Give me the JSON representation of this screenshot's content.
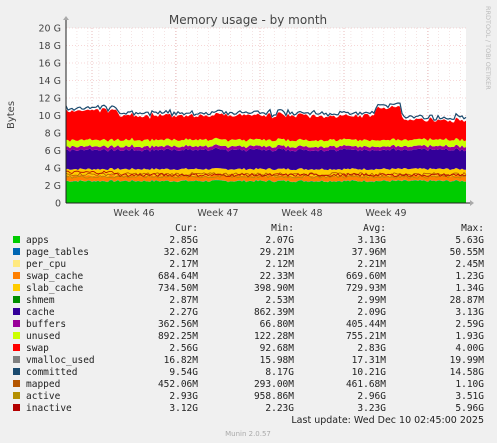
{
  "chart_data": {
    "type": "area",
    "title": "Memory usage - by month",
    "ylabel": "Bytes",
    "ylim": [
      0,
      20
    ],
    "y_unit": "G",
    "yticks": [
      "0",
      "2 G",
      "4 G",
      "6 G",
      "8 G",
      "10 G",
      "12 G",
      "14 G",
      "16 G",
      "18 G",
      "20 G"
    ],
    "xticks": [
      "Week 46",
      "Week 47",
      "Week 48",
      "Week 49"
    ],
    "grid": true,
    "side_label": "RRDTOOL / TOBI OETIKER",
    "stack_approx_G": [
      {
        "name": "apps",
        "value": 2.5
      },
      {
        "name": "page_tables",
        "value": 0.03
      },
      {
        "name": "per_cpu",
        "value": 0.002
      },
      {
        "name": "swap_cache",
        "value": 0.6
      },
      {
        "name": "slab_cache",
        "value": 0.75
      },
      {
        "name": "shmem",
        "value": 0.003
      },
      {
        "name": "cache",
        "value": 2.2
      },
      {
        "name": "buffers",
        "value": 0.4
      },
      {
        "name": "unused",
        "value": 0.75
      },
      {
        "name": "swap",
        "value": 2.8
      }
    ],
    "lines_approx_G": [
      {
        "name": "committed",
        "value": 10.2
      },
      {
        "name": "mapped",
        "value": 3.3
      },
      {
        "name": "active",
        "value": 3.0
      },
      {
        "name": "inactive",
        "value": 3.2
      }
    ],
    "legend_headers": {
      "cur": "Cur:",
      "min": "Min:",
      "avg": "Avg:",
      "max": "Max:"
    },
    "series": [
      {
        "name": "apps",
        "color": "#00cc00",
        "cur": "2.85G",
        "min": "2.07G",
        "avg": "3.13G",
        "max": "5.63G"
      },
      {
        "name": "page_tables",
        "color": "#0066b3",
        "cur": "32.62M",
        "min": "29.21M",
        "avg": "37.96M",
        "max": "50.55M"
      },
      {
        "name": "per_cpu",
        "color": "#ffe97f",
        "cur": "2.17M",
        "min": "2.12M",
        "avg": "2.21M",
        "max": "2.45M"
      },
      {
        "name": "swap_cache",
        "color": "#ff8000",
        "cur": "684.64M",
        "min": "22.33M",
        "avg": "669.60M",
        "max": "1.23G"
      },
      {
        "name": "slab_cache",
        "color": "#ffcc00",
        "cur": "734.50M",
        "min": "398.90M",
        "avg": "729.93M",
        "max": "1.34G"
      },
      {
        "name": "shmem",
        "color": "#008f00",
        "cur": "2.87M",
        "min": "2.53M",
        "avg": "2.99M",
        "max": "28.87M"
      },
      {
        "name": "cache",
        "color": "#330099",
        "cur": "2.27G",
        "min": "862.39M",
        "avg": "2.09G",
        "max": "3.13G"
      },
      {
        "name": "buffers",
        "color": "#990099",
        "cur": "362.56M",
        "min": "66.80M",
        "avg": "405.44M",
        "max": "2.59G"
      },
      {
        "name": "unused",
        "color": "#ccff00",
        "cur": "892.25M",
        "min": "122.28M",
        "avg": "755.21M",
        "max": "1.93G"
      },
      {
        "name": "swap",
        "color": "#ff0000",
        "cur": "2.56G",
        "min": "92.68M",
        "avg": "2.83G",
        "max": "4.00G"
      },
      {
        "name": "vmalloc_used",
        "color": "#808080",
        "cur": "16.82M",
        "min": "15.98M",
        "avg": "17.31M",
        "max": "19.99M"
      },
      {
        "name": "committed",
        "color": "#1a4a6e",
        "cur": "9.54G",
        "min": "8.17G",
        "avg": "10.21G",
        "max": "14.58G"
      },
      {
        "name": "mapped",
        "color": "#b35500",
        "cur": "452.06M",
        "min": "293.00M",
        "avg": "461.68M",
        "max": "1.10G"
      },
      {
        "name": "active",
        "color": "#b38f00",
        "cur": "2.93G",
        "min": "958.86M",
        "avg": "2.96G",
        "max": "3.51G"
      },
      {
        "name": "inactive",
        "color": "#b30000",
        "cur": "3.12G",
        "min": "2.23G",
        "avg": "3.23G",
        "max": "5.96G"
      }
    ],
    "last_update": "Last update:  Wed Dec 10 02:45:00 2025",
    "footer": "Munin 2.0.57"
  }
}
